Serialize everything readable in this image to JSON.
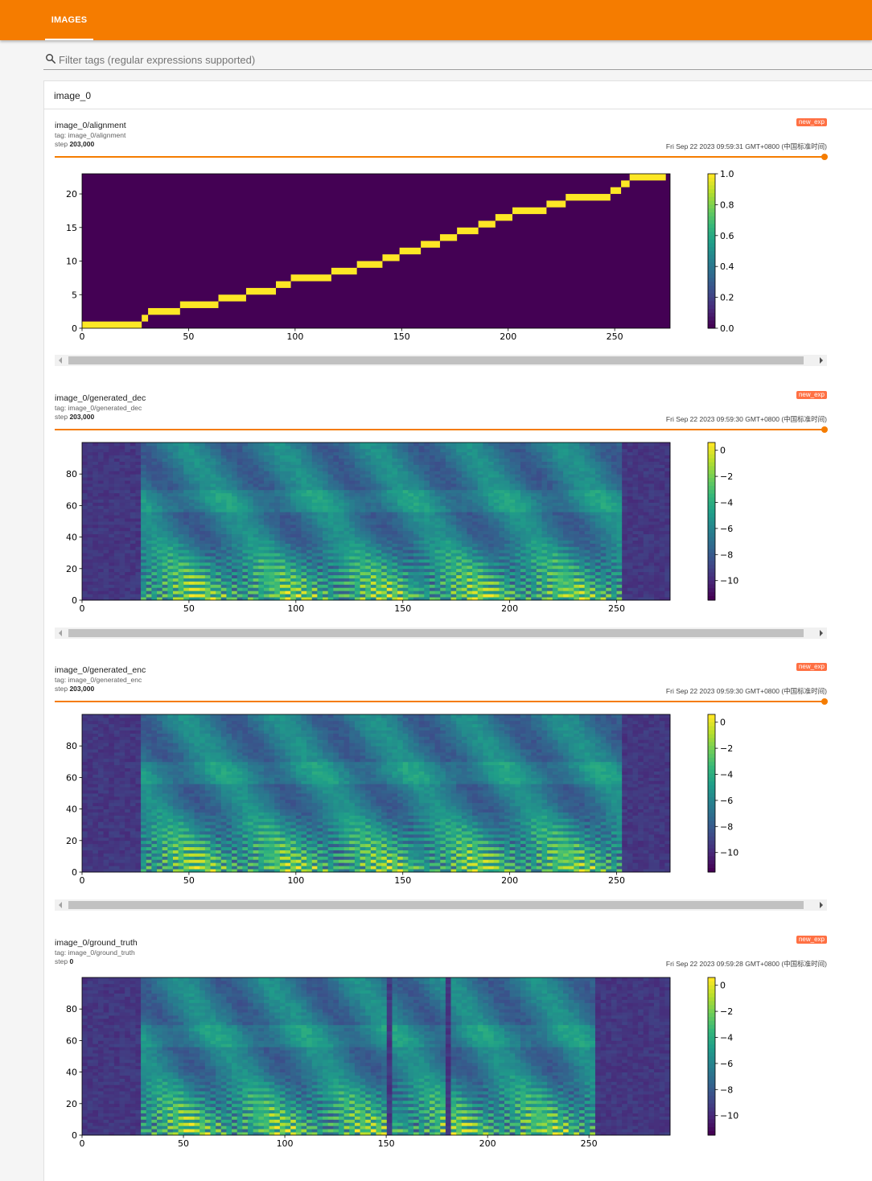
{
  "header": {
    "tab_images": "IMAGES",
    "accent_color": "#f57c00"
  },
  "search": {
    "placeholder": "Filter tags (regular expressions supported)",
    "value": ""
  },
  "group": {
    "title": "image_0"
  },
  "cards": [
    {
      "title": "image_0/alignment",
      "tag_label": "tag: image_0/alignment",
      "step_label": "step",
      "step_value": "203,000",
      "run": "new_exp",
      "time": "Fri Sep 22 2023 09:59:31 GMT+0800 (中国标准时间)",
      "plot": {
        "type": "alignment",
        "x_ticks": [
          "0",
          "50",
          "100",
          "150",
          "200",
          "250"
        ],
        "x_tick_vals": [
          0,
          50,
          100,
          150,
          200,
          250
        ],
        "x_max": 276,
        "y_ticks": [
          "0",
          "5",
          "10",
          "15",
          "20"
        ],
        "y_tick_vals": [
          0,
          5,
          10,
          15,
          20
        ],
        "y_max": 23,
        "cbar_ticks": [
          "1.0",
          "0.8",
          "0.6",
          "0.4",
          "0.2",
          "0.0"
        ],
        "cbar_vals": [
          1.0,
          0.8,
          0.6,
          0.4,
          0.2,
          0.0
        ],
        "cbar_min": 0.0,
        "cbar_max": 1.0
      }
    },
    {
      "title": "image_0/generated_dec",
      "tag_label": "tag: image_0/generated_dec",
      "step_label": "step",
      "step_value": "203,000",
      "run": "new_exp",
      "time": "Fri Sep 22 2023 09:59:30 GMT+0800 (中国标准时间)",
      "plot": {
        "type": "spectrogram",
        "x_ticks": [
          "0",
          "50",
          "100",
          "150",
          "200",
          "250"
        ],
        "x_tick_vals": [
          0,
          50,
          100,
          150,
          200,
          250
        ],
        "x_max": 275,
        "y_ticks": [
          "0",
          "20",
          "40",
          "60",
          "80"
        ],
        "y_tick_vals": [
          0,
          20,
          40,
          60,
          80
        ],
        "y_max": 100,
        "cbar_ticks": [
          "0",
          "−2",
          "−4",
          "−6",
          "−8",
          "−10"
        ],
        "cbar_vals": [
          0,
          -2,
          -4,
          -6,
          -8,
          -10
        ],
        "cbar_min": -11.5,
        "cbar_max": 0.6
      }
    },
    {
      "title": "image_0/generated_enc",
      "tag_label": "tag: image_0/generated_enc",
      "step_label": "step",
      "step_value": "203,000",
      "run": "new_exp",
      "time": "Fri Sep 22 2023 09:59:30 GMT+0800 (中国标准时间)",
      "plot": {
        "type": "spectrogram",
        "x_ticks": [
          "0",
          "50",
          "100",
          "150",
          "200",
          "250"
        ],
        "x_tick_vals": [
          0,
          50,
          100,
          150,
          200,
          250
        ],
        "x_max": 275,
        "y_ticks": [
          "0",
          "20",
          "40",
          "60",
          "80"
        ],
        "y_tick_vals": [
          0,
          20,
          40,
          60,
          80
        ],
        "y_max": 100,
        "cbar_ticks": [
          "0",
          "−2",
          "−4",
          "−6",
          "−8",
          "−10"
        ],
        "cbar_vals": [
          0,
          -2,
          -4,
          -6,
          -8,
          -10
        ],
        "cbar_min": -11.5,
        "cbar_max": 0.6
      }
    },
    {
      "title": "image_0/ground_truth",
      "tag_label": "tag: image_0/ground_truth",
      "step_label": "step",
      "step_value": "0",
      "run": "new_exp",
      "time": "Fri Sep 22 2023 09:59:28 GMT+0800 (中国标准时间)",
      "plot": {
        "type": "spectrogram",
        "x_ticks": [
          "0",
          "50",
          "100",
          "150",
          "200",
          "250"
        ],
        "x_tick_vals": [
          0,
          50,
          100,
          150,
          200,
          250
        ],
        "x_max": 290,
        "y_ticks": [
          "0",
          "20",
          "40",
          "60",
          "80"
        ],
        "y_tick_vals": [
          0,
          20,
          40,
          60,
          80
        ],
        "y_max": 100,
        "cbar_ticks": [
          "0",
          "−2",
          "−4",
          "−6",
          "−8",
          "−10"
        ],
        "cbar_vals": [
          0,
          -2,
          -4,
          -6,
          -8,
          -10
        ],
        "cbar_min": -11.5,
        "cbar_max": 0.6
      }
    }
  ]
}
